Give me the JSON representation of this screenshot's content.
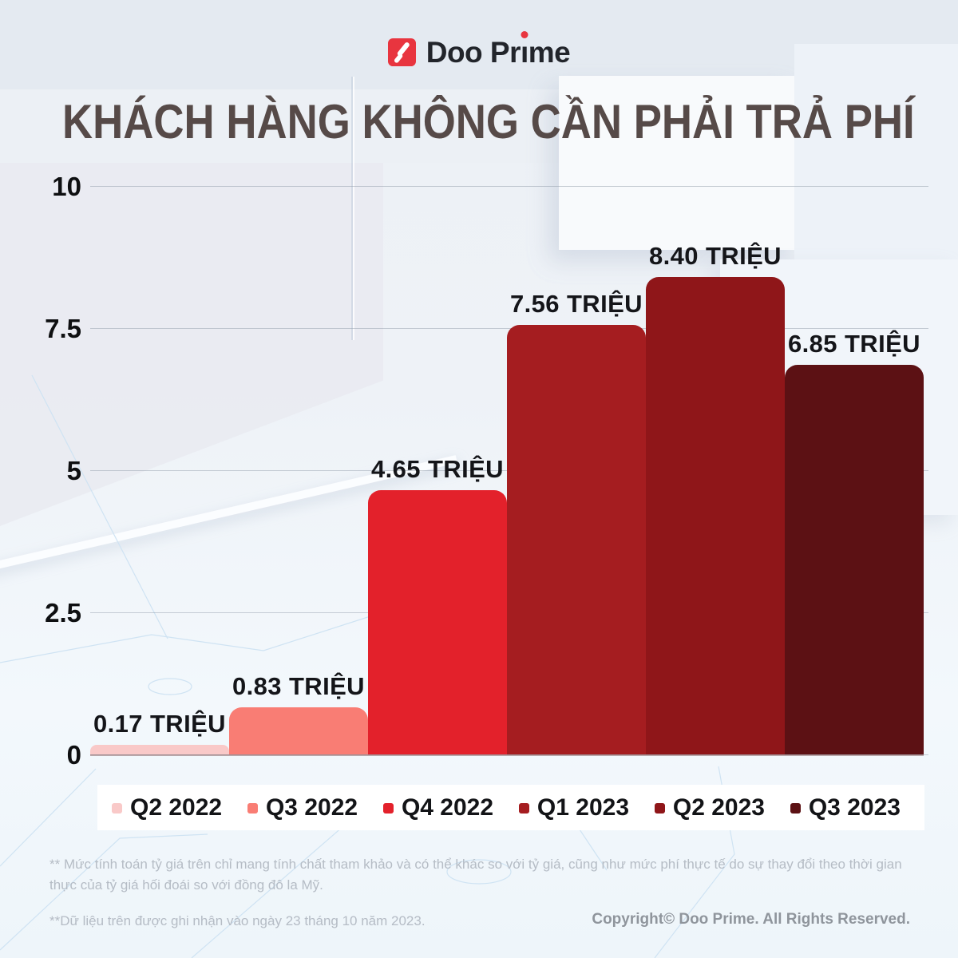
{
  "logo": {
    "brand_pre": "Doo Pr",
    "brand_i": "ı",
    "brand_post": "me",
    "icon_red": "#e8353f",
    "text_color": "#22252b"
  },
  "title": "KHÁCH HÀNG KHÔNG CẦN PHẢI TRẢ PHÍ",
  "chart_data": {
    "type": "bar",
    "title": "KHÁCH HÀNG KHÔNG CẦN PHẢI TRẢ PHÍ",
    "categories": [
      "Q2 2022",
      "Q3 2022",
      "Q4 2022",
      "Q1 2023",
      "Q2 2023",
      "Q3 2023"
    ],
    "values": [
      0.17,
      0.83,
      4.65,
      7.56,
      8.4,
      6.85
    ],
    "value_labels": [
      "0.17 TRIỆU",
      "0.83 TRIỆU",
      "4.65 TRIỆU",
      "7.56 TRIỆU",
      "8.40 TRIỆU",
      "6.85 TRIỆU"
    ],
    "unit": "TRIỆU",
    "bar_colors": [
      "#f9c9c8",
      "#f97d74",
      "#e3212b",
      "#a51d20",
      "#8f1619",
      "#5c1114"
    ],
    "ylim": [
      0,
      10
    ],
    "yticks": [
      0,
      2.5,
      5,
      7.5,
      10
    ],
    "ytick_labels": [
      "0",
      "2.5",
      "5",
      "7.5",
      "10"
    ],
    "grid": true,
    "legend_position": "bottom",
    "xlabel": "",
    "ylabel": ""
  },
  "footnotes": {
    "exchange_note": "** Mức tính toán tỷ giá trên chỉ mang tính chất tham khảo và có thể khác so với tỷ giá, cũng như mức phí thực tế do sự thay đổi theo thời gian thực của tỷ giá hối đoái so với đồng đô la Mỹ.",
    "data_note": "**Dữ liệu trên được ghi nhận vào ngày 23 tháng 10 năm 2023.",
    "copyright": "Copyright© Doo Prime. All Rights Reserved."
  }
}
